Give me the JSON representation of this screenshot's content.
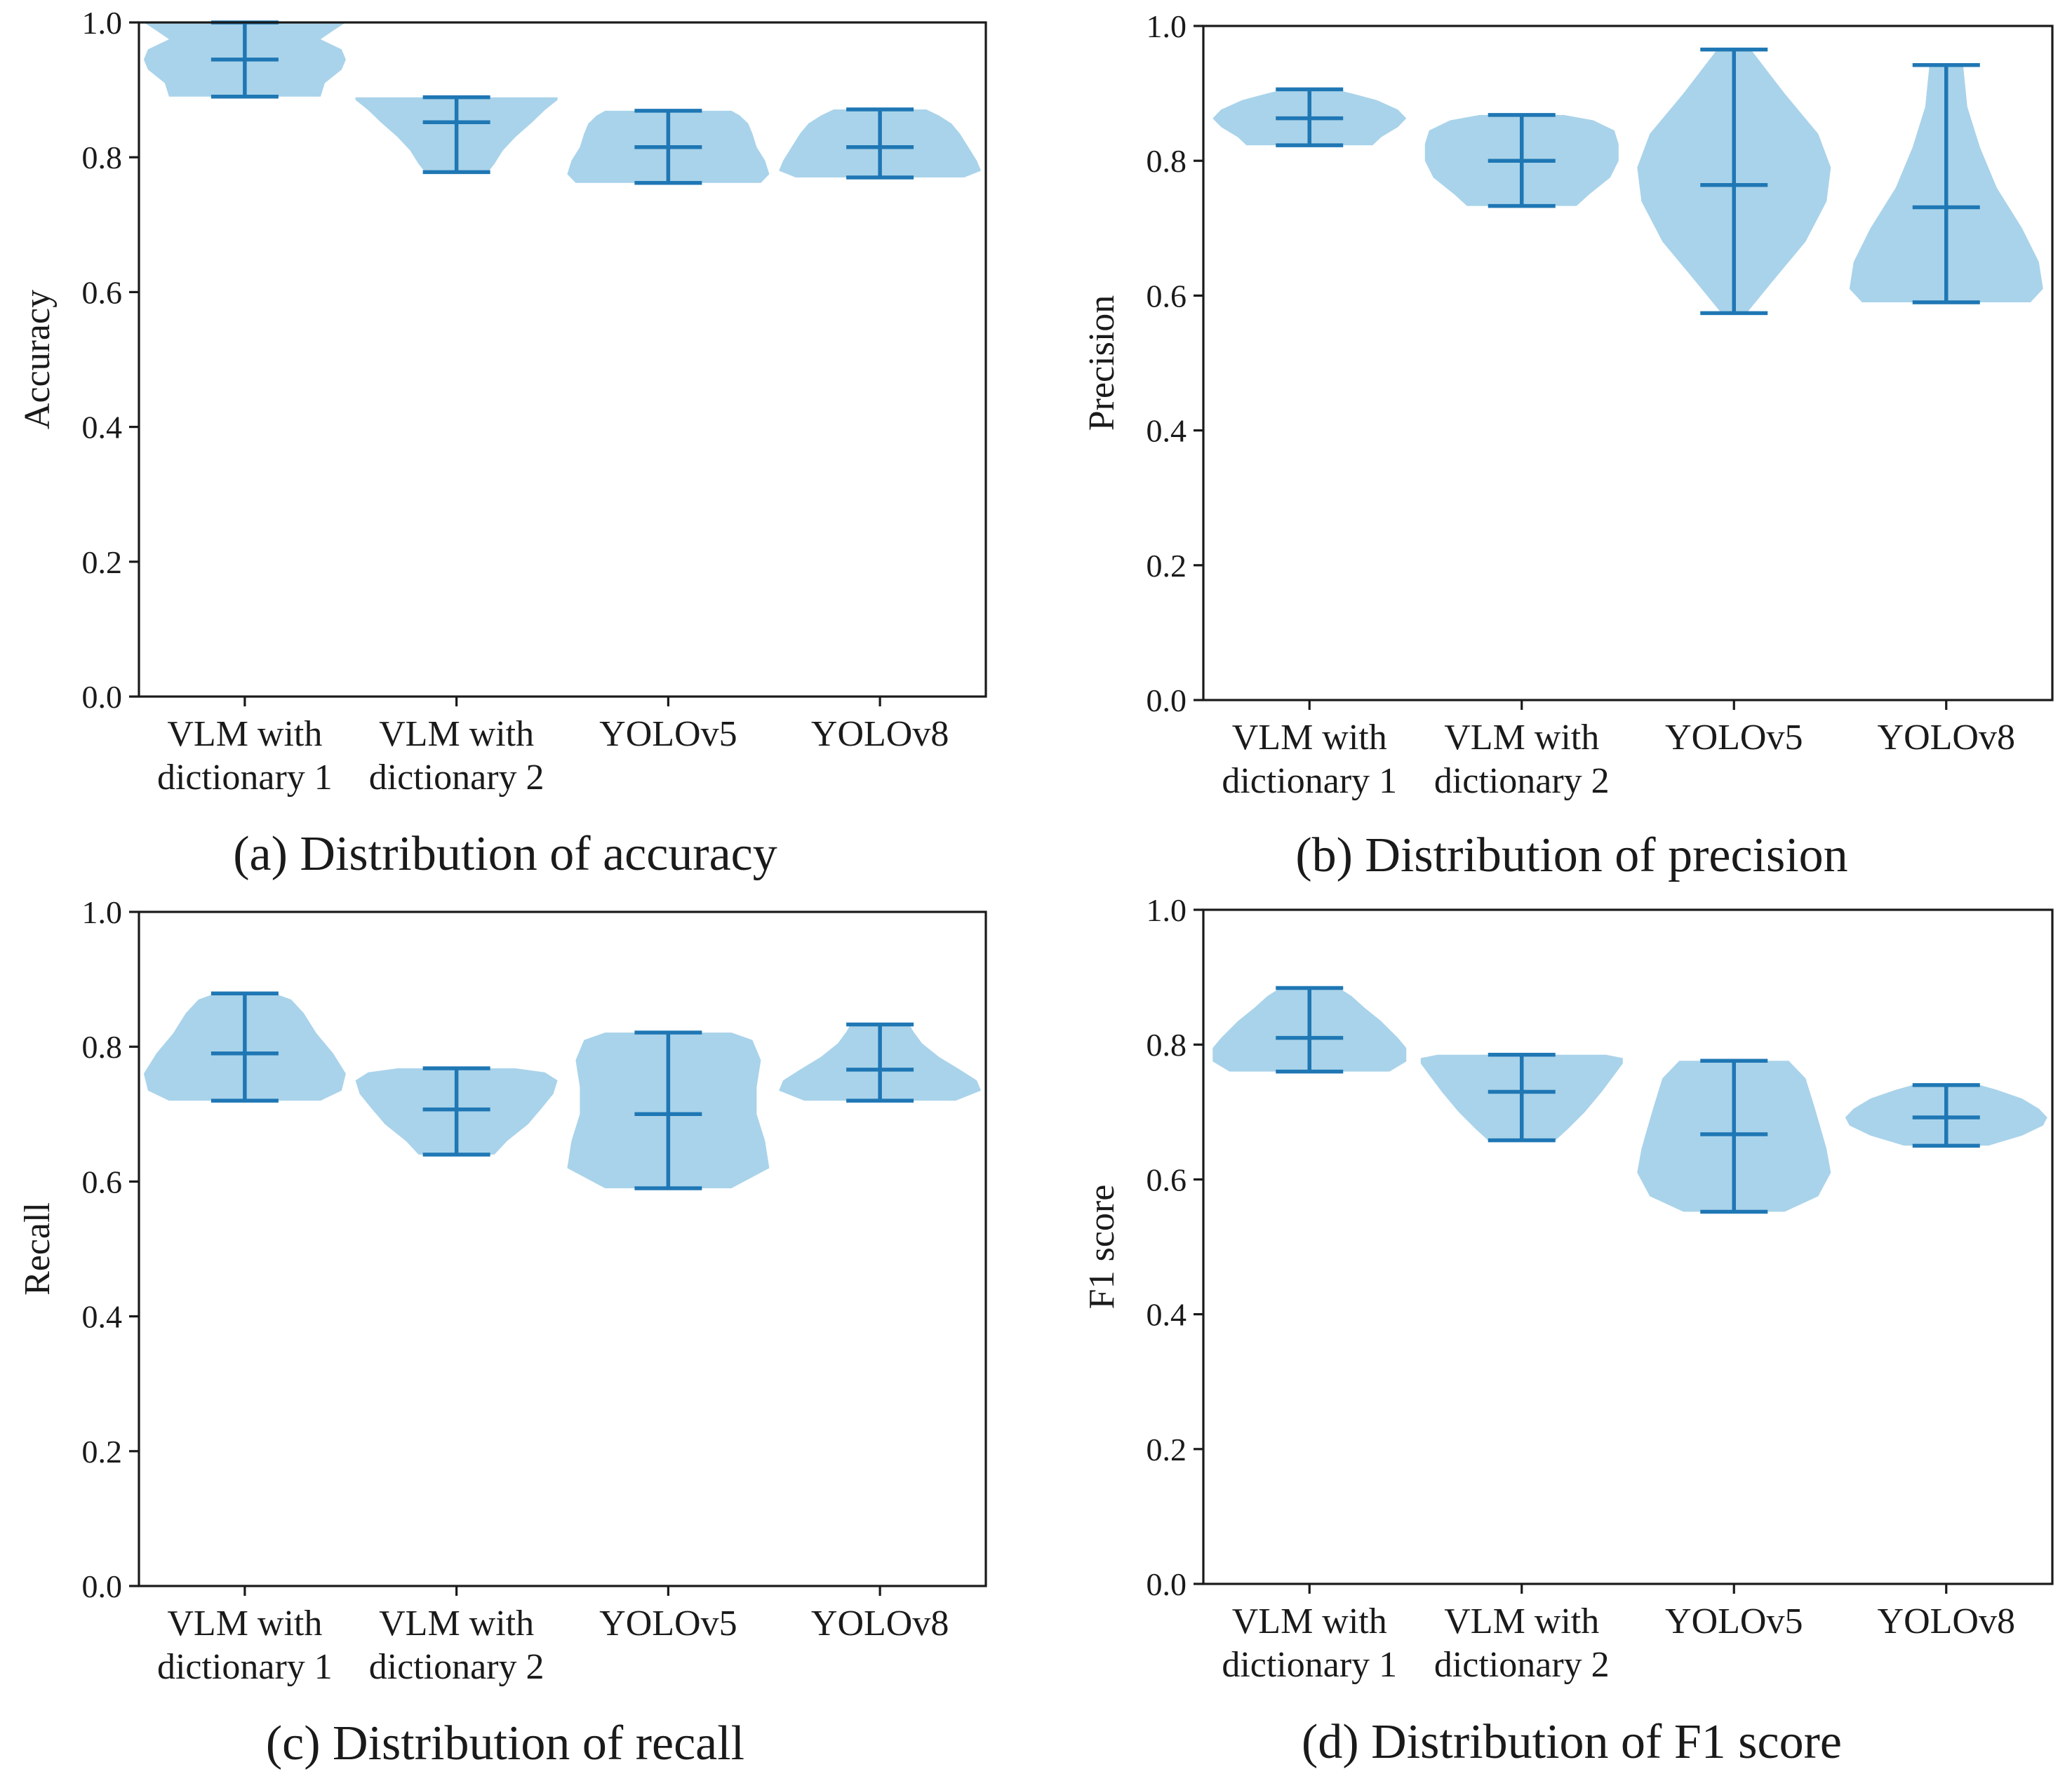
{
  "colors": {
    "violin_fill": "#a9d3ea",
    "violin_line": "#1f77b4",
    "axis": "#1a1a1a"
  },
  "chart_data": [
    {
      "type": "violin",
      "caption": "(a) Distribution of accuracy",
      "ylabel": "Accuracy",
      "ylim": [
        0,
        1
      ],
      "yticks": [
        "0.0",
        "0.2",
        "0.4",
        "0.6",
        "0.8",
        "1.0"
      ],
      "categories": [
        {
          "line1": "VLM with",
          "line2": "dictionary 1"
        },
        {
          "line1": "VLM with",
          "line2": "dictionary 2"
        },
        {
          "line1": "YOLOv5",
          "line2": ""
        },
        {
          "line1": "YOLOv8",
          "line2": ""
        }
      ],
      "series": [
        {
          "name": "VLM with dictionary 1",
          "min": 0.89,
          "max": 1.0,
          "median": 0.945,
          "shape": [
            [
              0.89,
              0.36
            ],
            [
              0.91,
              0.38
            ],
            [
              0.93,
              0.46
            ],
            [
              0.945,
              0.48
            ],
            [
              0.96,
              0.46
            ],
            [
              0.975,
              0.36
            ],
            [
              0.99,
              0.43
            ],
            [
              1.0,
              0.48
            ]
          ]
        },
        {
          "name": "VLM with dictionary 2",
          "min": 0.778,
          "max": 0.889,
          "median": 0.852,
          "shape": [
            [
              0.778,
              0.15
            ],
            [
              0.79,
              0.18
            ],
            [
              0.81,
              0.22
            ],
            [
              0.83,
              0.28
            ],
            [
              0.852,
              0.36
            ],
            [
              0.87,
              0.42
            ],
            [
              0.885,
              0.48
            ],
            [
              0.889,
              0.48
            ]
          ]
        },
        {
          "name": "YOLOv5",
          "min": 0.762,
          "max": 0.869,
          "median": 0.815,
          "shape": [
            [
              0.762,
              0.44
            ],
            [
              0.775,
              0.48
            ],
            [
              0.795,
              0.46
            ],
            [
              0.815,
              0.42
            ],
            [
              0.835,
              0.4
            ],
            [
              0.85,
              0.38
            ],
            [
              0.862,
              0.34
            ],
            [
              0.869,
              0.3
            ]
          ]
        },
        {
          "name": "YOLOv8",
          "min": 0.77,
          "max": 0.871,
          "median": 0.815,
          "shape": [
            [
              0.77,
              0.4
            ],
            [
              0.78,
              0.48
            ],
            [
              0.795,
              0.46
            ],
            [
              0.815,
              0.42
            ],
            [
              0.835,
              0.38
            ],
            [
              0.85,
              0.34
            ],
            [
              0.862,
              0.28
            ],
            [
              0.871,
              0.22
            ]
          ]
        }
      ]
    },
    {
      "type": "violin",
      "caption": "(b) Distribution of precision",
      "ylabel": "Precision",
      "ylim": [
        0,
        1
      ],
      "yticks": [
        "0.0",
        "0.2",
        "0.4",
        "0.6",
        "0.8",
        "1.0"
      ],
      "categories": [
        {
          "line1": "VLM with",
          "line2": "dictionary 1"
        },
        {
          "line1": "VLM with",
          "line2": "dictionary 2"
        },
        {
          "line1": "YOLOv5",
          "line2": ""
        },
        {
          "line1": "YOLOv8",
          "line2": ""
        }
      ],
      "series": [
        {
          "name": "VLM with dictionary 1",
          "min": 0.823,
          "max": 0.906,
          "median": 0.863,
          "shape": [
            [
              0.823,
              0.3
            ],
            [
              0.835,
              0.34
            ],
            [
              0.85,
              0.42
            ],
            [
              0.863,
              0.46
            ],
            [
              0.876,
              0.42
            ],
            [
              0.89,
              0.32
            ],
            [
              0.9,
              0.2
            ],
            [
              0.906,
              0.12
            ]
          ]
        },
        {
          "name": "VLM with dictionary 2",
          "min": 0.733,
          "max": 0.868,
          "median": 0.8,
          "shape": [
            [
              0.733,
              0.26
            ],
            [
              0.75,
              0.32
            ],
            [
              0.775,
              0.42
            ],
            [
              0.8,
              0.46
            ],
            [
              0.825,
              0.46
            ],
            [
              0.845,
              0.44
            ],
            [
              0.86,
              0.34
            ],
            [
              0.868,
              0.2
            ]
          ]
        },
        {
          "name": "YOLOv5",
          "min": 0.574,
          "max": 0.965,
          "median": 0.764,
          "shape": [
            [
              0.574,
              0.06
            ],
            [
              0.62,
              0.18
            ],
            [
              0.68,
              0.34
            ],
            [
              0.74,
              0.44
            ],
            [
              0.79,
              0.46
            ],
            [
              0.84,
              0.4
            ],
            [
              0.9,
              0.24
            ],
            [
              0.965,
              0.08
            ]
          ]
        },
        {
          "name": "YOLOv8",
          "min": 0.59,
          "max": 0.942,
          "median": 0.731,
          "shape": [
            [
              0.59,
              0.4
            ],
            [
              0.61,
              0.46
            ],
            [
              0.65,
              0.44
            ],
            [
              0.7,
              0.36
            ],
            [
              0.76,
              0.24
            ],
            [
              0.82,
              0.16
            ],
            [
              0.88,
              0.1
            ],
            [
              0.942,
              0.08
            ]
          ]
        }
      ]
    },
    {
      "type": "violin",
      "caption": "(c) Distribution of recall",
      "ylabel": "Recall",
      "ylim": [
        0,
        1
      ],
      "yticks": [
        "0.0",
        "0.2",
        "0.4",
        "0.6",
        "0.8",
        "1.0"
      ],
      "categories": [
        {
          "line1": "VLM with",
          "line2": "dictionary 1"
        },
        {
          "line1": "VLM with",
          "line2": "dictionary 2"
        },
        {
          "line1": "YOLOv5",
          "line2": ""
        },
        {
          "line1": "YOLOv8",
          "line2": ""
        }
      ],
      "series": [
        {
          "name": "VLM with dictionary 1",
          "min": 0.72,
          "max": 0.879,
          "median": 0.79,
          "shape": [
            [
              0.72,
              0.36
            ],
            [
              0.735,
              0.46
            ],
            [
              0.76,
              0.48
            ],
            [
              0.79,
              0.42
            ],
            [
              0.82,
              0.34
            ],
            [
              0.85,
              0.28
            ],
            [
              0.87,
              0.22
            ],
            [
              0.879,
              0.14
            ]
          ]
        },
        {
          "name": "VLM with dictionary 2",
          "min": 0.64,
          "max": 0.768,
          "median": 0.707,
          "shape": [
            [
              0.64,
              0.18
            ],
            [
              0.66,
              0.24
            ],
            [
              0.685,
              0.34
            ],
            [
              0.707,
              0.4
            ],
            [
              0.73,
              0.46
            ],
            [
              0.75,
              0.48
            ],
            [
              0.762,
              0.42
            ],
            [
              0.768,
              0.28
            ]
          ]
        },
        {
          "name": "YOLOv5",
          "min": 0.59,
          "max": 0.821,
          "median": 0.7,
          "shape": [
            [
              0.59,
              0.3
            ],
            [
              0.62,
              0.48
            ],
            [
              0.66,
              0.46
            ],
            [
              0.7,
              0.42
            ],
            [
              0.74,
              0.42
            ],
            [
              0.78,
              0.44
            ],
            [
              0.81,
              0.4
            ],
            [
              0.821,
              0.3
            ]
          ]
        },
        {
          "name": "YOLOv8",
          "min": 0.72,
          "max": 0.833,
          "median": 0.766,
          "shape": [
            [
              0.72,
              0.36
            ],
            [
              0.735,
              0.48
            ],
            [
              0.75,
              0.46
            ],
            [
              0.766,
              0.38
            ],
            [
              0.785,
              0.28
            ],
            [
              0.805,
              0.2
            ],
            [
              0.822,
              0.16
            ],
            [
              0.833,
              0.14
            ]
          ]
        }
      ]
    },
    {
      "type": "violin",
      "caption": "(d) Distribution of F1 score",
      "ylabel": "F1 score",
      "ylim": [
        0,
        1
      ],
      "yticks": [
        "0.0",
        "0.2",
        "0.4",
        "0.6",
        "0.8",
        "1.0"
      ],
      "categories": [
        {
          "line1": "VLM with",
          "line2": "dictionary 1"
        },
        {
          "line1": "VLM with",
          "line2": "dictionary 2"
        },
        {
          "line1": "YOLOv5",
          "line2": ""
        },
        {
          "line1": "YOLOv8",
          "line2": ""
        }
      ],
      "series": [
        {
          "name": "VLM with dictionary 1",
          "min": 0.76,
          "max": 0.884,
          "median": 0.81,
          "shape": [
            [
              0.76,
              0.38
            ],
            [
              0.775,
              0.46
            ],
            [
              0.795,
              0.46
            ],
            [
              0.81,
              0.42
            ],
            [
              0.835,
              0.34
            ],
            [
              0.855,
              0.26
            ],
            [
              0.872,
              0.2
            ],
            [
              0.884,
              0.14
            ]
          ]
        },
        {
          "name": "VLM with dictionary 2",
          "min": 0.658,
          "max": 0.785,
          "median": 0.73,
          "shape": [
            [
              0.658,
              0.16
            ],
            [
              0.675,
              0.22
            ],
            [
              0.7,
              0.3
            ],
            [
              0.73,
              0.38
            ],
            [
              0.755,
              0.44
            ],
            [
              0.772,
              0.48
            ],
            [
              0.78,
              0.48
            ],
            [
              0.785,
              0.4
            ]
          ]
        },
        {
          "name": "YOLOv5",
          "min": 0.552,
          "max": 0.776,
          "median": 0.667,
          "shape": [
            [
              0.552,
              0.24
            ],
            [
              0.575,
              0.4
            ],
            [
              0.61,
              0.46
            ],
            [
              0.645,
              0.44
            ],
            [
              0.667,
              0.42
            ],
            [
              0.71,
              0.38
            ],
            [
              0.75,
              0.34
            ],
            [
              0.776,
              0.26
            ]
          ]
        },
        {
          "name": "YOLOv8",
          "min": 0.65,
          "max": 0.74,
          "median": 0.692,
          "shape": [
            [
              0.65,
              0.2
            ],
            [
              0.665,
              0.36
            ],
            [
              0.68,
              0.46
            ],
            [
              0.692,
              0.48
            ],
            [
              0.705,
              0.44
            ],
            [
              0.72,
              0.36
            ],
            [
              0.733,
              0.24
            ],
            [
              0.74,
              0.16
            ]
          ]
        }
      ]
    }
  ]
}
